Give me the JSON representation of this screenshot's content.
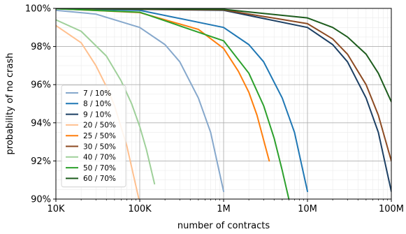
{
  "chart_data": {
    "type": "line",
    "xlabel": "number of contracts",
    "ylabel": "probability of no crash",
    "x_scale": "log",
    "xlim": [
      10000,
      100000000
    ],
    "ylim": [
      90,
      100
    ],
    "x_ticks": [
      {
        "value": 10000,
        "label": "10K"
      },
      {
        "value": 100000,
        "label": "100K"
      },
      {
        "value": 1000000,
        "label": "1M"
      },
      {
        "value": 10000000,
        "label": "10M"
      },
      {
        "value": 100000000,
        "label": "100M"
      }
    ],
    "y_ticks": [
      {
        "value": 90,
        "label": "90%"
      },
      {
        "value": 92,
        "label": "92%"
      },
      {
        "value": 94,
        "label": "94%"
      },
      {
        "value": 96,
        "label": "96%"
      },
      {
        "value": 98,
        "label": "98%"
      },
      {
        "value": 100,
        "label": "100%"
      }
    ],
    "grid": true,
    "legend_position": "lower-left",
    "series": [
      {
        "name": "7 / 10%",
        "color": "#86a8cc",
        "x": [
          10000,
          30000,
          100000,
          200000,
          300000,
          500000,
          700000,
          1000000
        ],
        "y": [
          99.9,
          99.7,
          99.0,
          98.1,
          97.2,
          95.3,
          93.5,
          90.4
        ]
      },
      {
        "name": "8 / 10%",
        "color": "#1f77b4",
        "x": [
          10000,
          100000,
          1000000,
          2000000,
          3000000,
          5000000,
          7000000,
          10000000
        ],
        "y": [
          99.99,
          99.9,
          99.0,
          98.1,
          97.2,
          95.3,
          93.5,
          90.4
        ]
      },
      {
        "name": "9 / 10%",
        "color": "#1c3f63",
        "x": [
          10000,
          1000000,
          10000000,
          20000000,
          30000000,
          50000000,
          70000000,
          100000000
        ],
        "y": [
          99.999,
          99.9,
          99.0,
          98.1,
          97.2,
          95.3,
          93.5,
          90.4
        ]
      },
      {
        "name": "20 / 50%",
        "color": "#ffc08f",
        "x": [
          10000,
          20000,
          30000,
          40000,
          50000,
          70000,
          100000
        ],
        "y": [
          99.1,
          98.2,
          97.0,
          95.9,
          94.9,
          92.8,
          89.8
        ]
      },
      {
        "name": "25 / 50%",
        "color": "#ff7f0e",
        "x": [
          10000,
          100000,
          500000,
          1000000,
          1500000,
          2000000,
          2500000,
          3000000,
          3500000
        ],
        "y": [
          99.99,
          99.78,
          98.9,
          97.9,
          96.7,
          95.6,
          94.4,
          93.1,
          92.0
        ]
      },
      {
        "name": "30 / 50%",
        "color": "#8c4a22",
        "x": [
          10000,
          1000000,
          10000000,
          20000000,
          30000000,
          50000000,
          70000000,
          100000000
        ],
        "y": [
          99.999,
          99.92,
          99.2,
          98.4,
          97.6,
          96.0,
          94.4,
          92.0
        ]
      },
      {
        "name": "40 / 70%",
        "color": "#9fd09a",
        "x": [
          10000,
          20000,
          40000,
          60000,
          80000,
          100000,
          120000,
          150000
        ],
        "y": [
          99.4,
          98.8,
          97.5,
          96.2,
          95.0,
          93.8,
          92.6,
          90.8
        ]
      },
      {
        "name": "50 / 70%",
        "color": "#2ca02c",
        "x": [
          10000,
          100000,
          1000000,
          2000000,
          3000000,
          4000000,
          5000000,
          6000000
        ],
        "y": [
          99.98,
          99.8,
          98.3,
          96.6,
          94.9,
          93.2,
          91.5,
          90.0
        ]
      },
      {
        "name": "60 / 70%",
        "color": "#1d5c1d",
        "x": [
          10000,
          1000000,
          10000000,
          20000000,
          30000000,
          50000000,
          70000000,
          100000000
        ],
        "y": [
          99.999,
          99.95,
          99.5,
          99.0,
          98.5,
          97.6,
          96.6,
          95.1
        ]
      }
    ]
  }
}
